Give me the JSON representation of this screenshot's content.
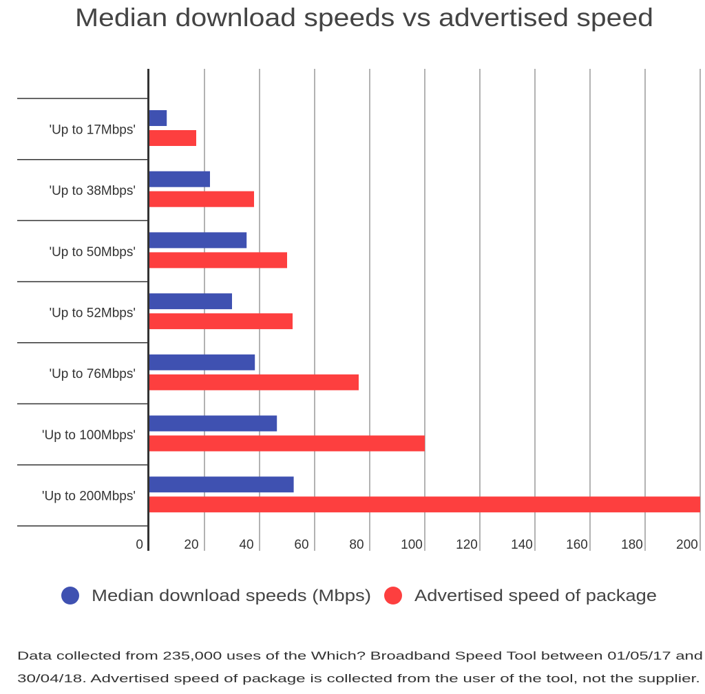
{
  "chart_data": {
    "type": "bar",
    "orientation": "horizontal",
    "title": "Median download speeds vs advertised speed",
    "categories": [
      "'Up to 17Mbps'",
      "'Up to 38Mbps'",
      "'Up to 50Mbps'",
      "'Up to 52Mbps'",
      "'Up to 76Mbps'",
      "'Up to 100Mbps'",
      "'Up to 200Mbps'"
    ],
    "series": [
      {
        "name": "Median download speeds (Mbps)",
        "color": "#3f51b1",
        "values": [
          6.3,
          22,
          35.3,
          30,
          38.3,
          46.3,
          52.4
        ]
      },
      {
        "name": "Advertised speed of package",
        "color": "#fd3f3f",
        "values": [
          17,
          38,
          50,
          52,
          76,
          100,
          200
        ]
      }
    ],
    "xlim": [
      0,
      200
    ],
    "xticks": [
      0,
      20,
      40,
      60,
      80,
      100,
      120,
      140,
      160,
      180,
      200
    ],
    "xlabel": "",
    "ylabel": "",
    "grid": "vertical",
    "legend_position": "bottom"
  },
  "footnote": {
    "line1": "Data collected from 235,000 uses of the Which? Broadband Speed Tool between 01/05/17 and",
    "line2": "30/04/18. Advertised speed of package is collected from the user of the tool, not the supplier."
  }
}
